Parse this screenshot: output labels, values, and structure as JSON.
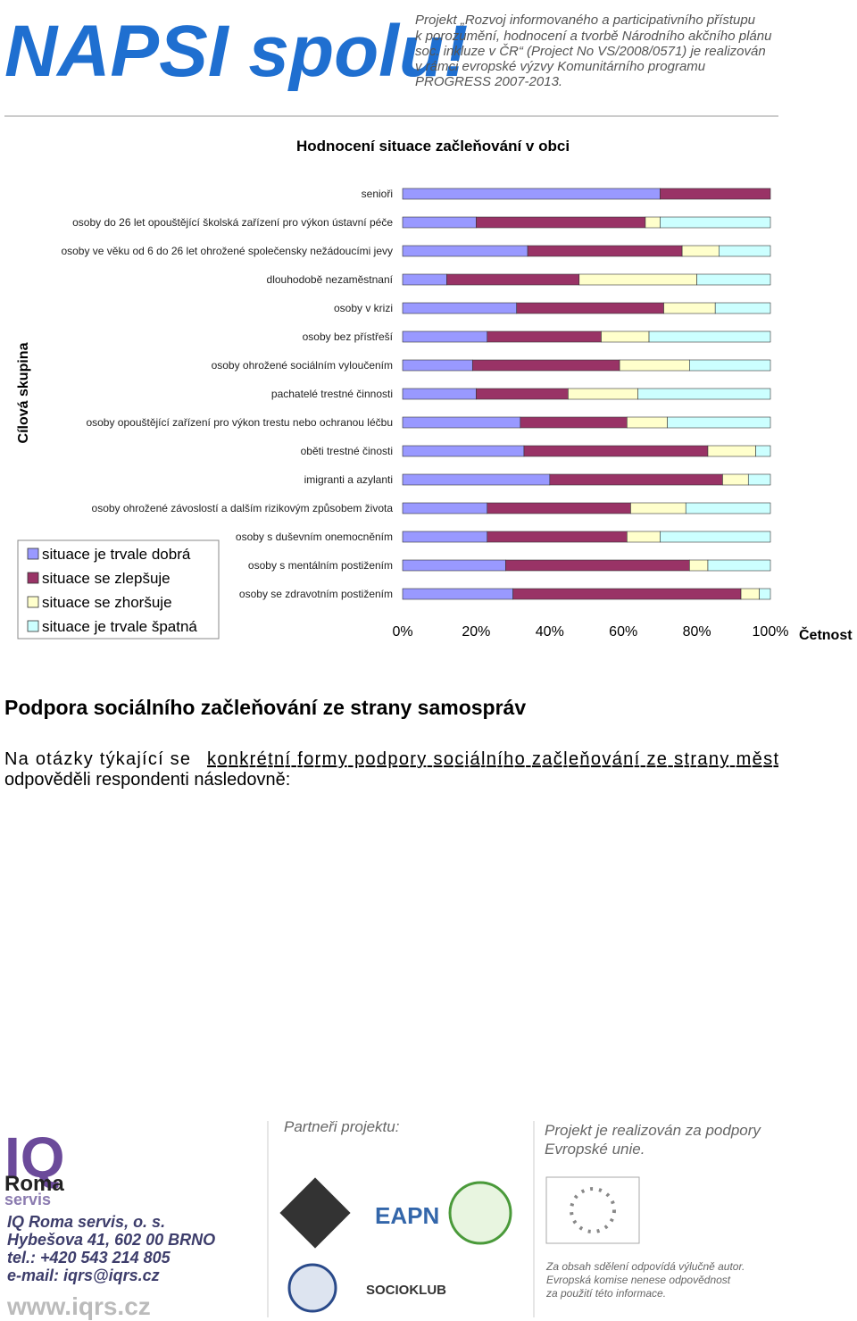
{
  "header": {
    "logo": "NAPSI spolu!",
    "project_lines": [
      "Projekt „Rozvoj informovaného a participativního přístupu",
      "k porozumění, hodnocení a tvorbě Národního akčního plánu",
      "soc. inkluze v ČR“ (Project No VS/2008/0571) je realizován",
      "v rámci evropské výzvy Komunitárního programu",
      "PROGRESS 2007-2013."
    ]
  },
  "chart_data": {
    "type": "stacked-bar-100",
    "title": "Hodnocení situace začleňování v obci",
    "y_label": "Cílová skupina",
    "x_label": "Četnost",
    "categories": [
      "senioři",
      "osoby do 26 let opouštějící školská zařízení pro výkon ústavní péče",
      "osoby ve věku od 6 do 26 let ohrožené společensky nežádoucími jevy",
      "dlouhodobě nezaměstnaní",
      "osoby v krizi",
      "osoby bez přístřeší",
      "osoby ohrožené sociálním vyloučením",
      "pachatelé trestné činnosti",
      "osoby opouštějící zařízení pro výkon trestu nebo ochranou léčbu",
      "oběti trestné činosti",
      "imigranti a azylanti",
      "osoby ohrožené závoslostí a dalším rizikovým způsobem života",
      "osoby s duševním onemocněním",
      "osoby s mentálním postižením",
      "osoby se zdravotním postižením"
    ],
    "series": [
      {
        "name": "situace je trvale dobrá",
        "color": "#9999ff",
        "values": [
          70,
          20,
          34,
          12,
          31,
          23,
          19,
          20,
          32,
          33,
          40,
          23,
          23,
          28,
          30
        ]
      },
      {
        "name": "situace se zlepšuje",
        "color": "#993366",
        "values": [
          30,
          46,
          42,
          36,
          40,
          31,
          40,
          25,
          29,
          50,
          47,
          39,
          38,
          50,
          62
        ]
      },
      {
        "name": "situace se zhoršuje",
        "color": "#ffffcc",
        "values": [
          0,
          4,
          10,
          32,
          14,
          13,
          19,
          19,
          11,
          13,
          7,
          15,
          9,
          5,
          5
        ]
      },
      {
        "name": "situace je trvale špatná",
        "color": "#ccffff",
        "values": [
          0,
          30,
          14,
          20,
          15,
          33,
          22,
          36,
          28,
          4,
          6,
          23,
          30,
          17,
          3
        ]
      }
    ],
    "xlim": [
      0,
      100
    ],
    "xticks": [
      {
        "value": 0,
        "label": "0%"
      },
      {
        "value": 20,
        "label": "20%"
      },
      {
        "value": 40,
        "label": "40%"
      },
      {
        "value": 60,
        "label": "60%"
      },
      {
        "value": 80,
        "label": "80%"
      },
      {
        "value": 100,
        "label": "100%"
      }
    ],
    "grid": false,
    "legend": "left"
  },
  "section": {
    "heading": "Podpora sociálního začleňování ze strany samospráv",
    "paragraph": [
      "Na otázky týkající se",
      "konkrétní formy podpory sociálního začleňování ze strany měst",
      "odpověděli respondenti následovně:"
    ]
  },
  "footer": {
    "logo": [
      "IQ",
      "Roma",
      "servis"
    ],
    "address": [
      "IQ Roma servis, o. s.",
      "Hybešova 41, 602 00  BRNO",
      "tel.: +420 543 214 805",
      "e-mail: iqrs@iqrs.cz"
    ],
    "web": "www.iqrs.cz",
    "partners_title": "Partneři projektu:",
    "partner_names": [
      "EAPN",
      "SOCIOKLUB"
    ],
    "eu_support": [
      "Projekt je realizován za podpory",
      "Evropské unie."
    ],
    "disclaimer": [
      "Za obsah sdělení odpovídá výlučně autor.",
      "Evropská komise nenese odpovědnost",
      "za použití této informace."
    ]
  }
}
